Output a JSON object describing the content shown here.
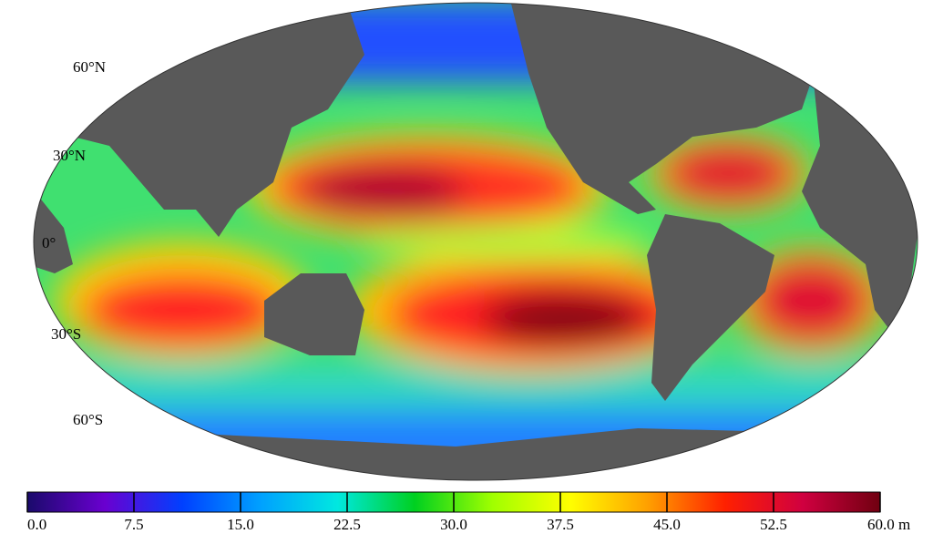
{
  "map": {
    "lat_labels": [
      "60°N",
      "30°N",
      "0°",
      "30°S",
      "60°S"
    ],
    "colorbar": {
      "lim": [
        0,
        60
      ],
      "ticks": [
        {
          "value": 0,
          "label": "0.0"
        },
        7.5,
        {
          "value": 15,
          "label": "15.0"
        },
        22.5,
        {
          "value": 30,
          "label": "30.0"
        },
        37.5,
        {
          "value": 45,
          "label": "45.0"
        },
        52.5,
        {
          "value": 60,
          "label": "60.0 m"
        }
      ],
      "colors": [
        "#1a0a6b",
        "#6a00d0",
        "#0040ff",
        "#00a0ff",
        "#00e8e0",
        "#00d020",
        "#a0ff00",
        "#ffff00",
        "#ffa000",
        "#ff2000",
        "#d00040",
        "#700010"
      ]
    }
  }
}
